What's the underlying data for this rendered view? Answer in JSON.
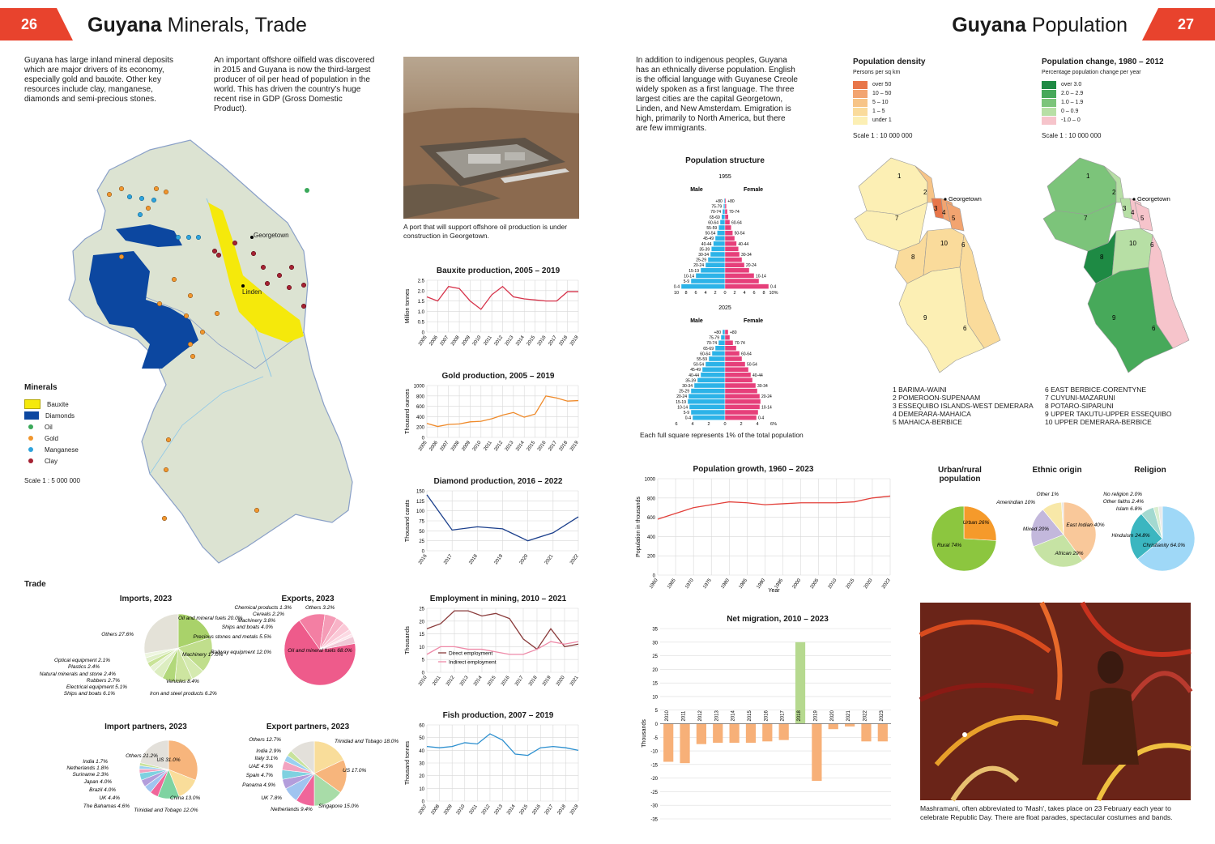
{
  "left": {
    "page_number": "26",
    "title_bold": "Guyana",
    "title_rest": "Minerals, Trade",
    "intro1": "Guyana has large inland mineral deposits which are major drivers of its economy, especially gold and bauxite. Other key resources include clay, manganese, diamonds and semi-precious stones.",
    "intro2": "An important offshore oilfield was discovered in 2015 and Guyana is now the third-largest producer of oil per head of population in the world. This has driven the country's huge recent rise in GDP (Gross Domestic Product).",
    "photo_caption": "A port that will support offshore oil production is under construction in Georgetown.",
    "map": {
      "georgetown": "Georgetown",
      "linden": "Linden",
      "legend_title": "Minerals",
      "legend": [
        "Bauxite",
        "Diamonds",
        "Oil",
        "Gold",
        "Manganese",
        "Clay"
      ],
      "scale": "Scale 1 : 5 000 000"
    },
    "trade_title": "Trade"
  },
  "right": {
    "page_number": "27",
    "title_bold": "Guyana",
    "title_rest": "Population",
    "intro": "In addition to indigenous peoples, Guyana has an ethnically diverse population. English is the official language with Guyanese Creole widely spoken as a first language. The three largest cities are the capital Georgetown, Linden, and New Amsterdam. Emigration is high, primarily to North America, but there are few immigrants.",
    "density": {
      "title": "Population density",
      "subtitle": "Persons per sq km",
      "legend": [
        "over 50",
        "10 – 50",
        "5 – 10",
        "1 – 5",
        "under 1"
      ],
      "colors": [
        "#e8764a",
        "#f2a470",
        "#f7c487",
        "#fadb9b",
        "#fcefb4"
      ],
      "scale": "Scale 1 : 10 000 000",
      "georgetown": "Georgetown"
    },
    "change": {
      "title": "Population change, 1980 – 2012",
      "subtitle": "Percentage population change per year",
      "legend": [
        "over 3.0",
        "2.0 – 2.9",
        "1.0 – 1.9",
        "0 – 0.9",
        "-1.0 – 0"
      ],
      "colors": [
        "#1e8a44",
        "#47a95a",
        "#7cc47a",
        "#b7dfa5",
        "#f6c4cb"
      ],
      "scale": "Scale 1 : 10 000 000",
      "georgetown": "Georgetown"
    },
    "regions_col1": [
      "1  BARIMA-WAINI",
      "2  POMEROON-SUPENAAM",
      "3  ESSEQUIBO ISLANDS-WEST DEMERARA",
      "4  DEMERARA-MAHAICA",
      "5  MAHAICA-BERBICE"
    ],
    "regions_col2": [
      "6  EAST BERBICE-CORENTYNE",
      "7  CUYUNI-MAZARUNI",
      "8  POTARO-SIPARUNI",
      "9  UPPER TAKUTU-UPPER ESSEQUIBO",
      "10  UPPER DEMERARA-BERBICE"
    ],
    "pyramid_title": "Population structure",
    "pyramid_note": "Each full square represents 1% of the total population",
    "pyramid_male": "Male",
    "pyramid_female": "Female",
    "photo_caption": "Mashramani, often abbreviated to 'Mash', takes place on 23 February each year to celebrate Republic Day. There are float parades, spectacular costumes and bands."
  },
  "chart_data": [
    {
      "type": "line",
      "title": "Bauxite production, 2005 – 2019",
      "ylabel": "Million tonnes",
      "x": [
        "2005",
        "2006",
        "2007",
        "2008",
        "2009",
        "2010",
        "2011",
        "2012",
        "2013",
        "2014",
        "2015",
        "2016",
        "2017",
        "2018",
        "2019"
      ],
      "yticks": [
        "0",
        "0.5",
        "1.0",
        "1.5",
        "2.0",
        "2.5"
      ],
      "ylim": [
        0,
        2.5
      ],
      "series": [
        {
          "values": [
            1.7,
            1.5,
            2.2,
            2.1,
            1.5,
            1.1,
            1.8,
            2.2,
            1.7,
            1.6,
            1.55,
            1.5,
            1.5,
            1.95,
            1.95
          ],
          "color": "#d6334a"
        }
      ]
    },
    {
      "type": "line",
      "title": "Gold production, 2005 – 2019",
      "ylabel": "Thousand ounces",
      "x": [
        "2005",
        "2006",
        "2007",
        "2008",
        "2009",
        "2010",
        "2011",
        "2012",
        "2013",
        "2014",
        "2015",
        "2016",
        "2017",
        "2018",
        "2019"
      ],
      "yticks": [
        "0",
        "200",
        "400",
        "600",
        "800",
        "1000"
      ],
      "ylim": [
        0,
        1000
      ],
      "series": [
        {
          "values": [
            270,
            210,
            250,
            260,
            300,
            310,
            360,
            430,
            480,
            390,
            450,
            800,
            760,
            700,
            710
          ],
          "color": "#ef8a2a"
        }
      ]
    },
    {
      "type": "line",
      "title": "Diamond production, 2016 – 2022",
      "ylabel": "Thousand carats",
      "x": [
        "2016",
        "2017",
        "2018",
        "2019",
        "2020",
        "2021",
        "2022"
      ],
      "yticks": [
        "0",
        "25",
        "50",
        "75",
        "100",
        "125",
        "150"
      ],
      "ylim": [
        0,
        150
      ],
      "series": [
        {
          "values": [
            140,
            52,
            60,
            55,
            25,
            45,
            85
          ],
          "color": "#1b3f8c"
        }
      ]
    },
    {
      "type": "line",
      "title": "Employment in mining, 2010 – 2021",
      "ylabel": "Thousands",
      "x": [
        "2010",
        "2011",
        "2012",
        "2013",
        "2014",
        "2015",
        "2016",
        "2017",
        "2018",
        "2019",
        "2020",
        "2021"
      ],
      "yticks": [
        "0",
        "5",
        "10",
        "15",
        "20",
        "25"
      ],
      "ylim": [
        0,
        25
      ],
      "series": [
        {
          "name": "Direct employment",
          "values": [
            17,
            19,
            24,
            24,
            22,
            23,
            21,
            13,
            9,
            17,
            10,
            11
          ],
          "color": "#8a3b3b"
        },
        {
          "name": "Indirect employment",
          "values": [
            7,
            10,
            10,
            9,
            9,
            8,
            7,
            7,
            9,
            12,
            11,
            12
          ],
          "color": "#ee8aa8"
        }
      ]
    },
    {
      "type": "line",
      "title": "Fish production, 2007 – 2019",
      "ylabel": "Thousand tonnes",
      "x": [
        "2007",
        "2008",
        "2009",
        "2010",
        "2011",
        "2012",
        "2013",
        "2014",
        "2015",
        "2016",
        "2017",
        "2018",
        "2019"
      ],
      "yticks": [
        "0",
        "10",
        "20",
        "30",
        "40",
        "50",
        "60"
      ],
      "ylim": [
        0,
        60
      ],
      "series": [
        {
          "values": [
            43,
            42,
            43,
            46,
            45,
            53,
            48,
            37,
            36,
            42,
            43,
            42,
            40
          ],
          "color": "#2c8fcf"
        }
      ]
    },
    {
      "type": "line",
      "title": "Population growth, 1960 – 2023",
      "ylabel": "Population in thousands",
      "xlabel": "Year",
      "x": [
        "1960",
        "1965",
        "1970",
        "1975",
        "1980",
        "1985",
        "1990",
        "1995",
        "2000",
        "2005",
        "2010",
        "2015",
        "2020",
        "2023"
      ],
      "yticks": [
        "0",
        "200",
        "400",
        "600",
        "800",
        "1000"
      ],
      "ylim": [
        0,
        1000
      ],
      "series": [
        {
          "values": [
            580,
            640,
            700,
            730,
            760,
            750,
            730,
            740,
            750,
            750,
            750,
            760,
            800,
            820
          ],
          "color": "#e2403a"
        }
      ]
    },
    {
      "type": "bar",
      "title": "Net migration, 2010 – 2023",
      "ylabel": "Thousands",
      "categories": [
        "2010",
        "2011",
        "2012",
        "2013",
        "2014",
        "2015",
        "2016",
        "2017",
        "2018",
        "2019",
        "2020",
        "2021",
        "2022",
        "2023"
      ],
      "values": [
        -14,
        -14.5,
        -7.5,
        -7,
        -7,
        -7,
        -6.5,
        -6,
        30,
        -21,
        -2,
        -1,
        -6.5,
        -6.5
      ],
      "yticks": [
        "-35",
        "-30",
        "-25",
        "-20",
        "-15",
        "-10",
        "-5",
        "0",
        "5",
        "10",
        "15",
        "20",
        "25",
        "30",
        "35"
      ],
      "ylim": [
        -35,
        35
      ]
    },
    {
      "type": "pie",
      "title": "Imports, 2023",
      "labels": [
        "Oil and mineral fuels 20.0%",
        "Machinery 17.0%",
        "Iron and steel products 6.2%",
        "Vehicles 8.4%",
        "Ships and boats 6.1%",
        "Electrical equipment 5.1%",
        "Rubbers 2.7%",
        "Natural minerals and stone 2.4%",
        "Plastics 2.4%",
        "Optical equipment 2.1%",
        "Others 27.6%"
      ],
      "values": [
        20.0,
        17.0,
        6.2,
        8.4,
        6.1,
        5.1,
        2.7,
        2.4,
        2.4,
        2.1,
        27.6
      ]
    },
    {
      "type": "pie",
      "title": "Exports, 2023",
      "labels": [
        "Oil and mineral fuels 68.0%",
        "Railway equipment 12.0%",
        "Precious stones and metals 5.5%",
        "Ships and boats 4.0%",
        "Machinery 3.8%",
        "Cereals 2.2%",
        "Chemical products 1.3%",
        "Others 3.2%"
      ],
      "values": [
        68.0,
        12.0,
        5.5,
        4.0,
        3.8,
        2.2,
        1.3,
        3.2
      ]
    },
    {
      "type": "pie",
      "title": "Import partners, 2023",
      "labels": [
        "US 31.0%",
        "China 13.0%",
        "Trinidad and Tobago 12.0%",
        "The Bahamas 4.6%",
        "UK 4.4%",
        "Brazil 4.0%",
        "Japan 4.0%",
        "Suriname 2.3%",
        "Netherlands 1.8%",
        "India 1.7%",
        "Others 21.2%"
      ],
      "values": [
        31.0,
        13.0,
        12.0,
        4.6,
        4.4,
        4.0,
        4.0,
        2.3,
        1.8,
        1.7,
        21.2
      ]
    },
    {
      "type": "pie",
      "title": "Export partners, 2023",
      "labels": [
        "Trinidad and Tobago 18.0%",
        "US 17.0%",
        "Singapore 15.0%",
        "Netherlands 9.4%",
        "UK 7.8%",
        "Panama 4.9%",
        "Spain 4.7%",
        "UAE 4.5%",
        "Italy 3.1%",
        "India 2.9%",
        "Others 12.7%"
      ],
      "values": [
        18.0,
        17.0,
        15.0,
        9.4,
        7.8,
        4.9,
        4.7,
        4.5,
        3.1,
        2.9,
        12.7
      ]
    },
    {
      "type": "pie",
      "title": "Urban/rural population",
      "labels": [
        "Urban 26%",
        "Rural 74%"
      ],
      "values": [
        26,
        74
      ]
    },
    {
      "type": "pie",
      "title": "Ethnic origin",
      "labels": [
        "East Indian 40%",
        "African 29%",
        "Mixed 20%",
        "Amerindian 10%",
        "Other 1%"
      ],
      "values": [
        40,
        29,
        20,
        10,
        1
      ]
    },
    {
      "type": "pie",
      "title": "Religion",
      "labels": [
        "Christianity 64.0%",
        "Hinduism 24.8%",
        "Islam 6.8%",
        "Other faiths 2.4%",
        "No religion 2.0%"
      ],
      "values": [
        64.0,
        24.8,
        6.8,
        2.4,
        2.0
      ]
    },
    {
      "type": "bar",
      "title": "Population structure",
      "panels": [
        {
          "year": "1955",
          "age_groups": [
            "0-4",
            "5-9",
            "10-14",
            "15-19",
            "20-24",
            "25-29",
            "30-34",
            "35-39",
            "40-44",
            "45-49",
            "50-54",
            "55-59",
            "60-64",
            "65-69",
            "70-74",
            "75-79",
            "+80"
          ],
          "male": [
            9.0,
            7.0,
            6.0,
            5.0,
            4.0,
            3.5,
            3.0,
            2.8,
            2.4,
            2.0,
            1.6,
            1.3,
            1.0,
            0.7,
            0.5,
            0.3,
            0.2
          ],
          "female": [
            9.0,
            7.0,
            6.0,
            5.0,
            4.0,
            3.5,
            3.0,
            2.8,
            2.4,
            2.0,
            1.6,
            1.3,
            1.0,
            0.7,
            0.5,
            0.3,
            0.2
          ],
          "xticks": [
            "10",
            "8",
            "6",
            "4",
            "2",
            "0",
            "2",
            "4",
            "6",
            "8",
            "10%"
          ]
        },
        {
          "year": "2025",
          "age_groups": [
            "0-4",
            "5-9",
            "10-14",
            "15-19",
            "20-24",
            "25-29",
            "30-34",
            "35-39",
            "40-44",
            "45-49",
            "50-54",
            "55-59",
            "60-64",
            "65-69",
            "70-74",
            "75-79",
            "+80"
          ],
          "male": [
            4.0,
            4.2,
            4.4,
            4.6,
            4.5,
            4.2,
            3.8,
            3.4,
            3.0,
            2.8,
            2.4,
            2.0,
            1.6,
            1.2,
            0.8,
            0.5,
            0.3
          ],
          "female": [
            3.9,
            4.1,
            4.3,
            4.4,
            4.3,
            4.0,
            3.8,
            3.4,
            3.2,
            2.9,
            2.5,
            2.1,
            1.8,
            1.4,
            1.0,
            0.6,
            0.4
          ],
          "xticks": [
            "6",
            "4",
            "2",
            "0",
            "2",
            "4",
            "6%"
          ]
        }
      ]
    }
  ]
}
